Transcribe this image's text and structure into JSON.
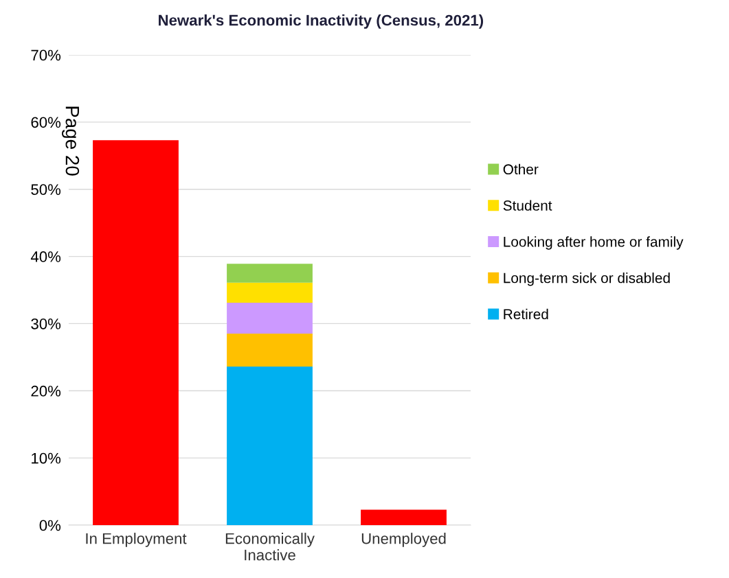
{
  "chart_data": {
    "type": "bar",
    "title": "Newark's Economic Inactivity (Census, 2021)",
    "categories": [
      "In Employment",
      "Economically Inactive",
      "Unemployed"
    ],
    "stacked": true,
    "series": [
      {
        "color": "#ff0000",
        "values": [
          57.3,
          null,
          2.3
        ]
      },
      {
        "name": "Retired",
        "color": "#00b0f0",
        "values": [
          null,
          23.6,
          null
        ]
      },
      {
        "name": "Long-term sick or disabled",
        "color": "#ffc000",
        "values": [
          null,
          4.9,
          null
        ]
      },
      {
        "name": "Looking after home or family",
        "color": "#cc99ff",
        "values": [
          null,
          4.6,
          null
        ]
      },
      {
        "name": "Student",
        "color": "#ffe000",
        "values": [
          null,
          3.0,
          null
        ]
      },
      {
        "name": "Other",
        "color": "#92d050",
        "values": [
          null,
          2.8,
          null
        ]
      }
    ],
    "ylim": [
      0,
      70
    ],
    "yticks": [
      {
        "value": 0,
        "label": "0%"
      },
      {
        "value": 10,
        "label": "10%"
      },
      {
        "value": 20,
        "label": "20%"
      },
      {
        "value": 30,
        "label": "30%"
      },
      {
        "value": 40,
        "label": "40%"
      },
      {
        "value": 50,
        "label": "50%"
      },
      {
        "value": 60,
        "label": "60%"
      },
      {
        "value": 70,
        "label": "70%"
      }
    ],
    "grid": "y",
    "legend": "right",
    "annotations": [
      "Page 20"
    ]
  }
}
